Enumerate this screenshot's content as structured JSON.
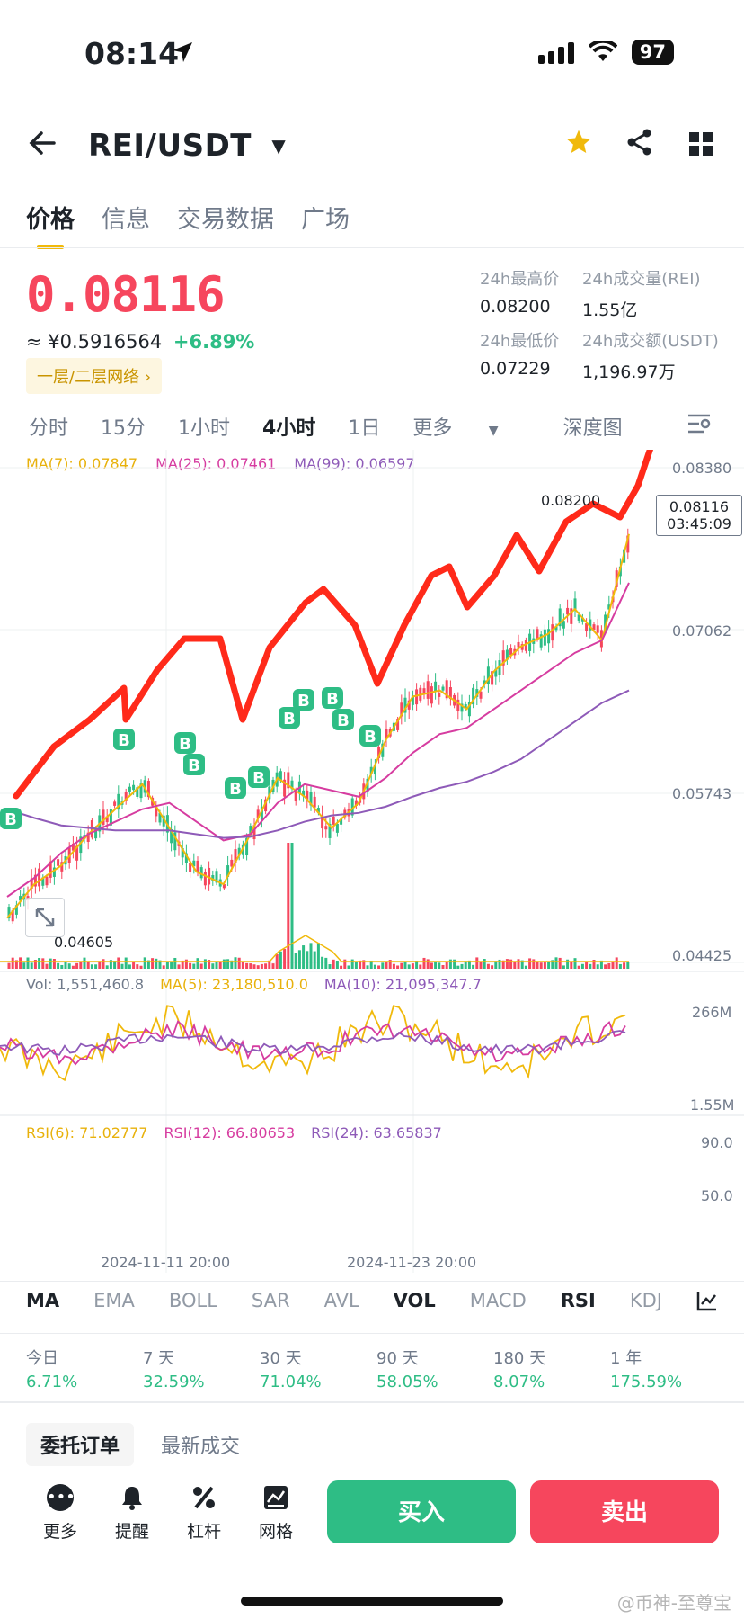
{
  "status_bar": {
    "time": "08:14",
    "battery": "97"
  },
  "header": {
    "pair": "REI/USDT"
  },
  "tabs": [
    "价格",
    "信息",
    "交易数据",
    "广场"
  ],
  "price": {
    "last": "0.08116",
    "cny": "≈ ¥0.5916564",
    "change_pct": "+6.89%",
    "layer_badge": "一层/二层网络",
    "high_label": "24h最高价",
    "high": "0.08200",
    "vol_label": "24h成交量(REI)",
    "vol": "1.55亿",
    "low_label": "24h最低价",
    "low": "0.07229",
    "amt_label": "24h成交额(USDT)",
    "amt": "1,196.97万"
  },
  "intervals": [
    "分时",
    "15分",
    "1小时",
    "4小时",
    "1日",
    "更多",
    "深度图"
  ],
  "ma_legend": {
    "ma7": "MA(7): 0.07847",
    "ma25": "MA(25): 0.07461",
    "ma99": "MA(99): 0.06597"
  },
  "price_axis": [
    "0.08380",
    "0.07062",
    "0.05743",
    "0.04425"
  ],
  "chart_annotations": {
    "high_marker": "0.08200",
    "low_marker": "0.04605",
    "current_price": "0.08116",
    "countdown": "03:45:09"
  },
  "volume_legend": {
    "vol": "Vol: 1,551,460.8",
    "ma5": "MA(5): 23,180,510.0",
    "ma10": "MA(10): 21,095,347.7"
  },
  "volume_axis": [
    "266M",
    "1.55M"
  ],
  "rsi_legend": {
    "rsi6": "RSI(6): 71.02777",
    "rsi12": "RSI(12): 66.80653",
    "rsi24": "RSI(24): 63.65837"
  },
  "rsi_axis": [
    "90.0",
    "50.0"
  ],
  "time_axis": [
    "2024-11-11 20:00",
    "2024-11-23 20:00"
  ],
  "indicator_tabs": [
    "MA",
    "EMA",
    "BOLL",
    "SAR",
    "AVL",
    "VOL",
    "MACD",
    "RSI",
    "KDJ"
  ],
  "performance": [
    {
      "label": "今日",
      "value": "6.71%"
    },
    {
      "label": "7 天",
      "value": "32.59%"
    },
    {
      "label": "30 天",
      "value": "71.04%"
    },
    {
      "label": "90 天",
      "value": "58.05%"
    },
    {
      "label": "180 天",
      "value": "8.07%"
    },
    {
      "label": "1 年",
      "value": "175.59%"
    }
  ],
  "order_tabs": [
    "委托订单",
    "最新成交"
  ],
  "bottom_bar": {
    "more": "更多",
    "alert": "提醒",
    "margin": "杠杆",
    "grid": "网格",
    "buy": "买入",
    "sell": "卖出"
  },
  "watermark": "@币神-至尊宝",
  "buy_marker_label": "B",
  "colors": {
    "up": "#2ebd85",
    "down": "#f6465d",
    "ma7": "#f0b90b",
    "ma25": "#d63ca0",
    "ma99": "#8e5ab8",
    "accent": "#f0b90b",
    "annotation": "#ff2a1a"
  },
  "chart_data": {
    "type": "line",
    "ylim": [
      0.04425,
      0.0838
    ],
    "series": [
      {
        "name": "MA(7)",
        "values": [
          0.0478,
          0.0505,
          0.052,
          0.0545,
          0.0565,
          0.0585,
          0.055,
          0.0515,
          0.0505,
          0.0545,
          0.059,
          0.0575,
          0.055,
          0.057,
          0.062,
          0.0655,
          0.066,
          0.0645,
          0.0675,
          0.0695,
          0.0705,
          0.0725,
          0.07,
          0.0785
        ]
      },
      {
        "name": "MA(25)",
        "values": [
          0.0495,
          0.051,
          0.053,
          0.0545,
          0.0555,
          0.0565,
          0.057,
          0.0555,
          0.054,
          0.0545,
          0.057,
          0.0585,
          0.058,
          0.0575,
          0.059,
          0.061,
          0.0625,
          0.063,
          0.0645,
          0.066,
          0.0675,
          0.069,
          0.07,
          0.0746
        ]
      },
      {
        "name": "MA(99)",
        "values": [
          0.0565,
          0.0558,
          0.0552,
          0.055,
          0.0548,
          0.0548,
          0.0548,
          0.0545,
          0.0542,
          0.0543,
          0.0548,
          0.0555,
          0.056,
          0.0562,
          0.0567,
          0.0575,
          0.0582,
          0.0587,
          0.0595,
          0.0605,
          0.062,
          0.0635,
          0.065,
          0.066
        ]
      }
    ]
  }
}
